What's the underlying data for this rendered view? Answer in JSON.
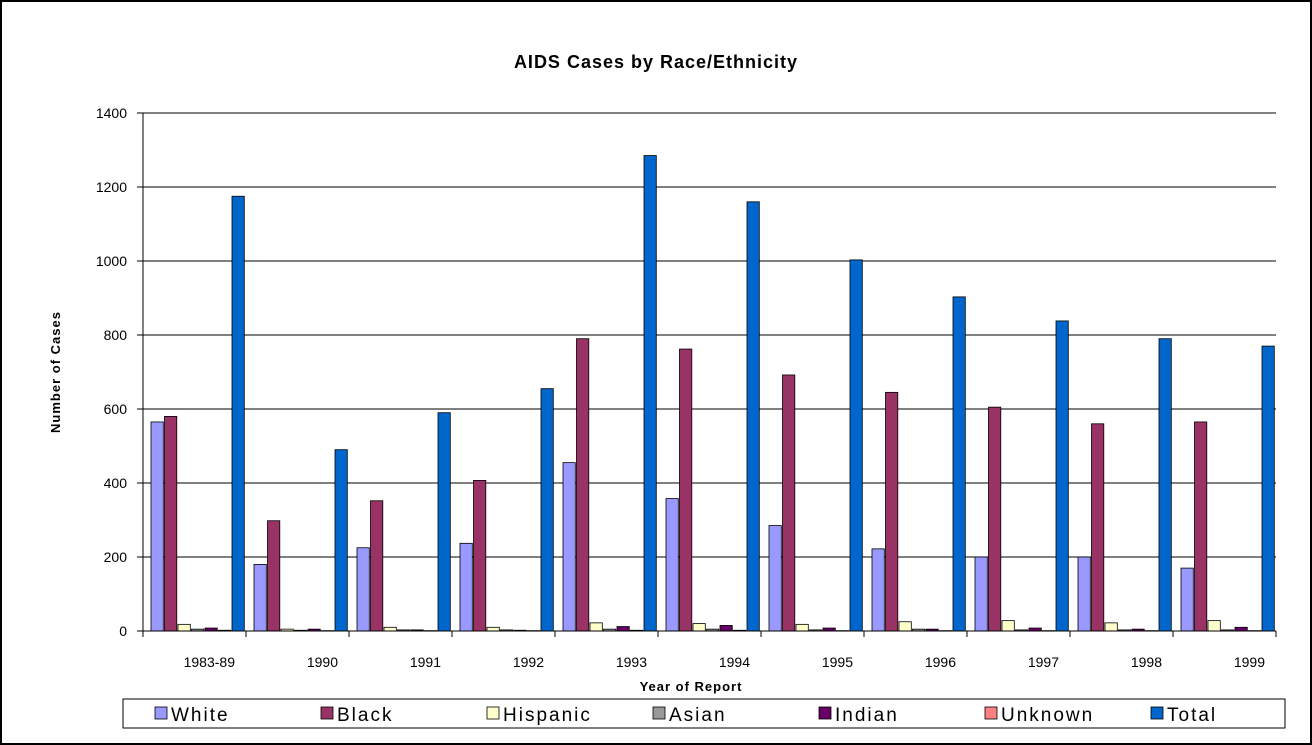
{
  "chart_data": {
    "type": "bar",
    "title": "AIDS Cases by Race/Ethnicity",
    "xlabel": "Year of Report",
    "ylabel": "Number of Cases",
    "ylim": [
      0,
      1400
    ],
    "yticks": [
      "0",
      "200",
      "400",
      "600",
      "800",
      "1000",
      "1200",
      "1400"
    ],
    "categories": [
      "1983-89",
      "1990",
      "1991",
      "1992",
      "1993",
      "1994",
      "1995",
      "1996",
      "1997",
      "1998",
      "1999"
    ],
    "grid": "horizontal",
    "legend_position": "bottom",
    "series": [
      {
        "name": "White",
        "color": "#9999ff",
        "values": [
          565,
          180,
          225,
          237,
          455,
          358,
          285,
          222,
          200,
          200,
          170
        ]
      },
      {
        "name": "Black",
        "color": "#993366",
        "values": [
          580,
          298,
          352,
          407,
          790,
          762,
          692,
          645,
          605,
          560,
          565
        ]
      },
      {
        "name": "Hispanic",
        "color": "#ffffcc",
        "values": [
          18,
          5,
          10,
          10,
          22,
          20,
          18,
          25,
          28,
          22,
          28
        ]
      },
      {
        "name": "Asian",
        "color": "#999999",
        "values": [
          5,
          2,
          3,
          3,
          5,
          5,
          3,
          5,
          3,
          3,
          3
        ]
      },
      {
        "name": "Indian",
        "color": "#660066",
        "values": [
          8,
          5,
          3,
          2,
          12,
          15,
          8,
          5,
          8,
          5,
          10
        ]
      },
      {
        "name": "Unknown",
        "color": "#ff8080",
        "values": [
          2,
          1,
          1,
          1,
          2,
          2,
          1,
          1,
          1,
          1,
          1
        ]
      },
      {
        "name": "Total",
        "color": "#0066cc",
        "values": [
          1175,
          490,
          590,
          655,
          1285,
          1160,
          1003,
          903,
          838,
          790,
          770
        ]
      }
    ]
  }
}
